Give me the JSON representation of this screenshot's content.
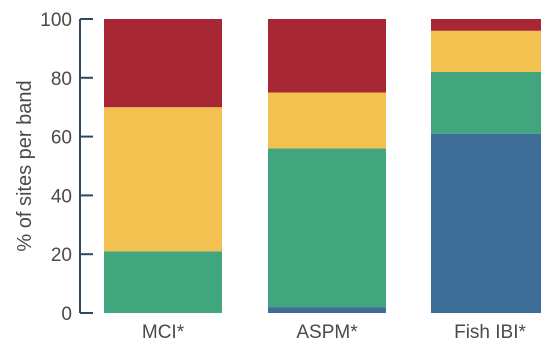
{
  "chart_data": {
    "type": "bar",
    "stacked": true,
    "categories": [
      "MCI*",
      "ASPM*",
      "Fish IBI*"
    ],
    "series": [
      {
        "color": "#3e6e98",
        "values": [
          0,
          2,
          61
        ]
      },
      {
        "color": "#41a57e",
        "values": [
          21,
          54,
          21
        ]
      },
      {
        "color": "#f2c14f",
        "values": [
          49,
          19,
          14
        ]
      },
      {
        "color": "#a72735",
        "values": [
          30,
          25,
          4
        ]
      }
    ],
    "title": "",
    "xlabel": "",
    "ylabel": "% of sites per band",
    "ylim": [
      0,
      100
    ],
    "yticks": [
      0,
      20,
      40,
      60,
      80,
      100
    ],
    "grid": false,
    "axis_color": "#2f4a5e"
  }
}
